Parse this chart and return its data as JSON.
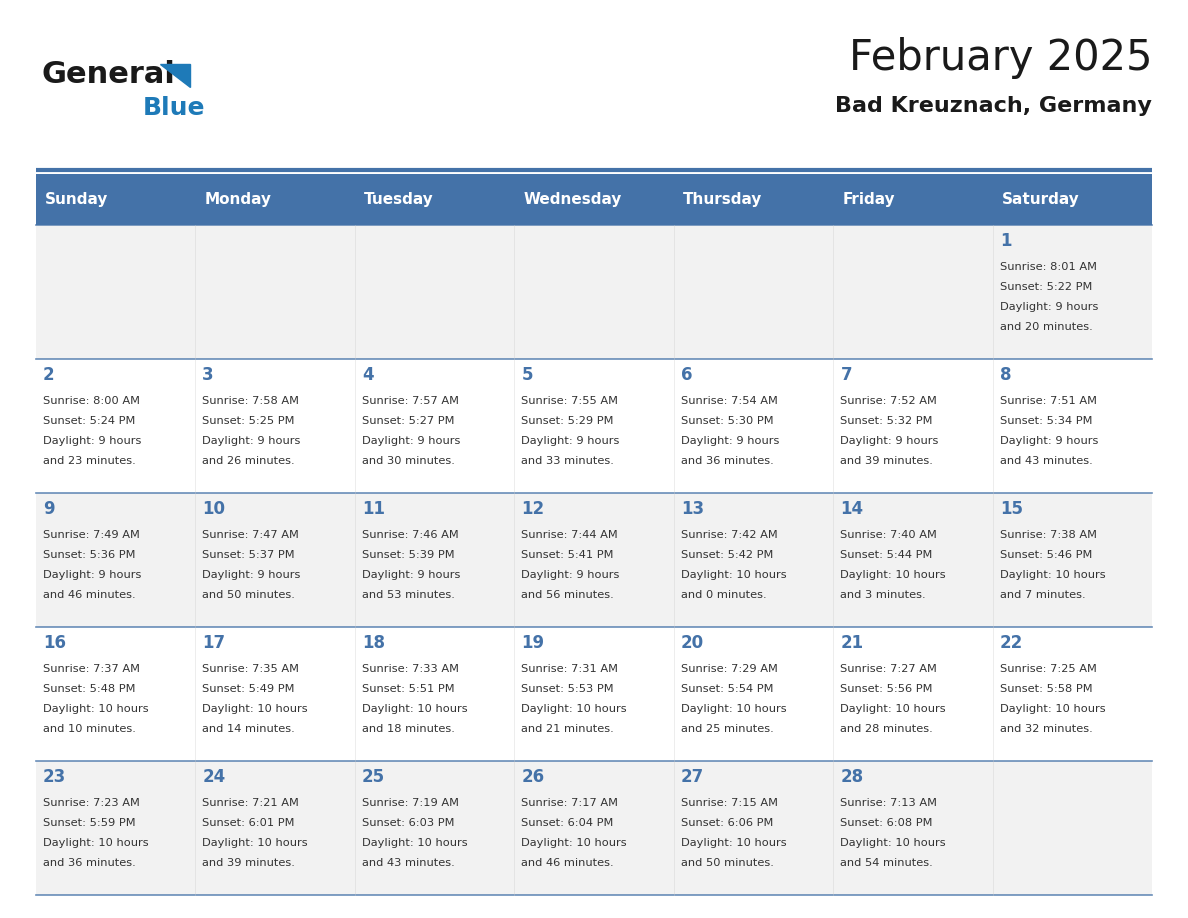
{
  "title": "February 2025",
  "subtitle": "Bad Kreuznach, Germany",
  "days_of_week": [
    "Sunday",
    "Monday",
    "Tuesday",
    "Wednesday",
    "Thursday",
    "Friday",
    "Saturday"
  ],
  "header_bg": "#4472a8",
  "header_text": "#ffffff",
  "row_bg_odd": "#f2f2f2",
  "row_bg_even": "#ffffff",
  "day_num_color": "#4472a8",
  "text_color": "#333333",
  "line_color": "#4472a8",
  "logo_text_color": "#1a1a1a",
  "logo_blue_color": "#1e7ab8",
  "calendar_data": [
    {
      "day": 1,
      "col": 6,
      "row": 0,
      "sunrise": "8:01 AM",
      "sunset": "5:22 PM",
      "daylight": "9 hours and 20 minutes."
    },
    {
      "day": 2,
      "col": 0,
      "row": 1,
      "sunrise": "8:00 AM",
      "sunset": "5:24 PM",
      "daylight": "9 hours and 23 minutes."
    },
    {
      "day": 3,
      "col": 1,
      "row": 1,
      "sunrise": "7:58 AM",
      "sunset": "5:25 PM",
      "daylight": "9 hours and 26 minutes."
    },
    {
      "day": 4,
      "col": 2,
      "row": 1,
      "sunrise": "7:57 AM",
      "sunset": "5:27 PM",
      "daylight": "9 hours and 30 minutes."
    },
    {
      "day": 5,
      "col": 3,
      "row": 1,
      "sunrise": "7:55 AM",
      "sunset": "5:29 PM",
      "daylight": "9 hours and 33 minutes."
    },
    {
      "day": 6,
      "col": 4,
      "row": 1,
      "sunrise": "7:54 AM",
      "sunset": "5:30 PM",
      "daylight": "9 hours and 36 minutes."
    },
    {
      "day": 7,
      "col": 5,
      "row": 1,
      "sunrise": "7:52 AM",
      "sunset": "5:32 PM",
      "daylight": "9 hours and 39 minutes."
    },
    {
      "day": 8,
      "col": 6,
      "row": 1,
      "sunrise": "7:51 AM",
      "sunset": "5:34 PM",
      "daylight": "9 hours and 43 minutes."
    },
    {
      "day": 9,
      "col": 0,
      "row": 2,
      "sunrise": "7:49 AM",
      "sunset": "5:36 PM",
      "daylight": "9 hours and 46 minutes."
    },
    {
      "day": 10,
      "col": 1,
      "row": 2,
      "sunrise": "7:47 AM",
      "sunset": "5:37 PM",
      "daylight": "9 hours and 50 minutes."
    },
    {
      "day": 11,
      "col": 2,
      "row": 2,
      "sunrise": "7:46 AM",
      "sunset": "5:39 PM",
      "daylight": "9 hours and 53 minutes."
    },
    {
      "day": 12,
      "col": 3,
      "row": 2,
      "sunrise": "7:44 AM",
      "sunset": "5:41 PM",
      "daylight": "9 hours and 56 minutes."
    },
    {
      "day": 13,
      "col": 4,
      "row": 2,
      "sunrise": "7:42 AM",
      "sunset": "5:42 PM",
      "daylight": "10 hours and 0 minutes."
    },
    {
      "day": 14,
      "col": 5,
      "row": 2,
      "sunrise": "7:40 AM",
      "sunset": "5:44 PM",
      "daylight": "10 hours and 3 minutes."
    },
    {
      "day": 15,
      "col": 6,
      "row": 2,
      "sunrise": "7:38 AM",
      "sunset": "5:46 PM",
      "daylight": "10 hours and 7 minutes."
    },
    {
      "day": 16,
      "col": 0,
      "row": 3,
      "sunrise": "7:37 AM",
      "sunset": "5:48 PM",
      "daylight": "10 hours and 10 minutes."
    },
    {
      "day": 17,
      "col": 1,
      "row": 3,
      "sunrise": "7:35 AM",
      "sunset": "5:49 PM",
      "daylight": "10 hours and 14 minutes."
    },
    {
      "day": 18,
      "col": 2,
      "row": 3,
      "sunrise": "7:33 AM",
      "sunset": "5:51 PM",
      "daylight": "10 hours and 18 minutes."
    },
    {
      "day": 19,
      "col": 3,
      "row": 3,
      "sunrise": "7:31 AM",
      "sunset": "5:53 PM",
      "daylight": "10 hours and 21 minutes."
    },
    {
      "day": 20,
      "col": 4,
      "row": 3,
      "sunrise": "7:29 AM",
      "sunset": "5:54 PM",
      "daylight": "10 hours and 25 minutes."
    },
    {
      "day": 21,
      "col": 5,
      "row": 3,
      "sunrise": "7:27 AM",
      "sunset": "5:56 PM",
      "daylight": "10 hours and 28 minutes."
    },
    {
      "day": 22,
      "col": 6,
      "row": 3,
      "sunrise": "7:25 AM",
      "sunset": "5:58 PM",
      "daylight": "10 hours and 32 minutes."
    },
    {
      "day": 23,
      "col": 0,
      "row": 4,
      "sunrise": "7:23 AM",
      "sunset": "5:59 PM",
      "daylight": "10 hours and 36 minutes."
    },
    {
      "day": 24,
      "col": 1,
      "row": 4,
      "sunrise": "7:21 AM",
      "sunset": "6:01 PM",
      "daylight": "10 hours and 39 minutes."
    },
    {
      "day": 25,
      "col": 2,
      "row": 4,
      "sunrise": "7:19 AM",
      "sunset": "6:03 PM",
      "daylight": "10 hours and 43 minutes."
    },
    {
      "day": 26,
      "col": 3,
      "row": 4,
      "sunrise": "7:17 AM",
      "sunset": "6:04 PM",
      "daylight": "10 hours and 46 minutes."
    },
    {
      "day": 27,
      "col": 4,
      "row": 4,
      "sunrise": "7:15 AM",
      "sunset": "6:06 PM",
      "daylight": "10 hours and 50 minutes."
    },
    {
      "day": 28,
      "col": 5,
      "row": 4,
      "sunrise": "7:13 AM",
      "sunset": "6:08 PM",
      "daylight": "10 hours and 54 minutes."
    }
  ]
}
